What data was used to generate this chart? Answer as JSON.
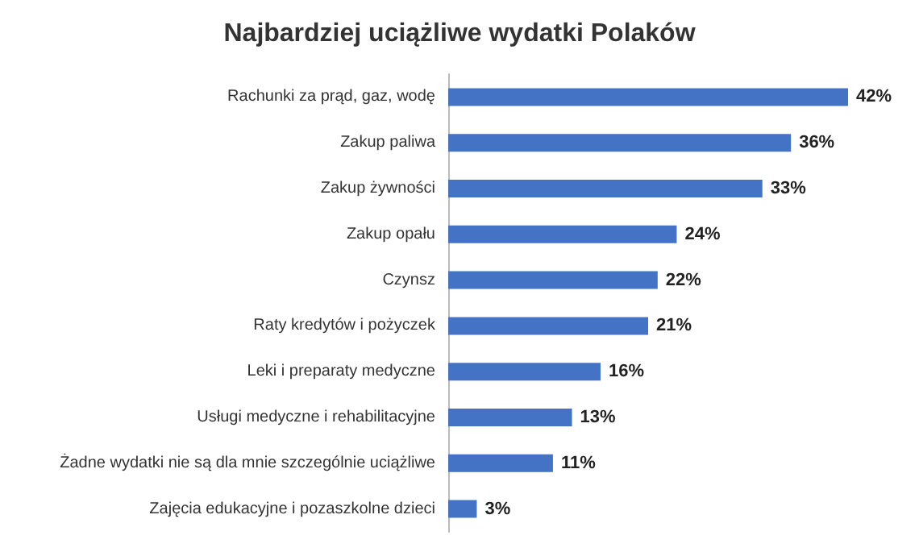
{
  "chart_data": {
    "type": "bar",
    "orientation": "horizontal",
    "title": "Najbardziej uciążliwe wydatki Polaków",
    "categories": [
      "Rachunki za prąd, gaz, wodę",
      "Zakup paliwa",
      "Zakup żywności",
      "Zakup opału",
      "Czynsz",
      "Raty kredytów i pożyczek",
      "Leki i preparaty medyczne",
      "Usługi medyczne i rehabilitacyjne",
      "Żadne wydatki nie są dla mnie szczególnie uciążliwe",
      "Zajęcia edukacyjne i pozaszkolne dzieci"
    ],
    "values": [
      42,
      36,
      33,
      24,
      22,
      21,
      16,
      13,
      11,
      3
    ],
    "value_labels": [
      "42%",
      "36%",
      "33%",
      "24%",
      "22%",
      "21%",
      "16%",
      "13%",
      "11%",
      "3%"
    ],
    "color": "#4472c4"
  }
}
